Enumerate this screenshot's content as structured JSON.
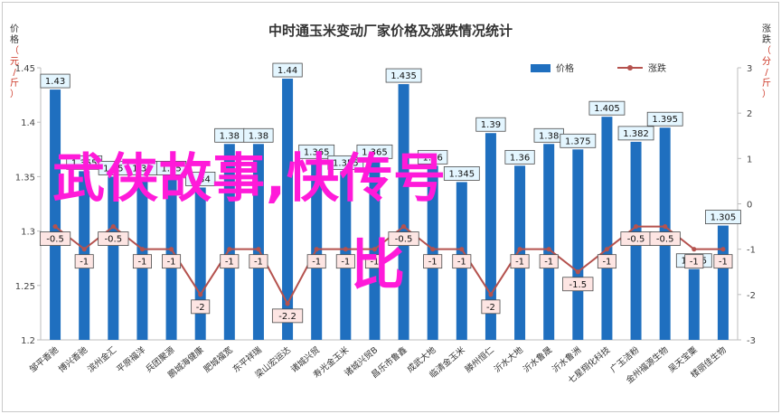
{
  "chart_data": {
    "type": "bar",
    "title": "中时通玉米变动厂家价格及涨跌情况统计",
    "ylabel_left": "价格（元/斤）",
    "ylabel_right": "涨跌（分/斤）",
    "xlabel": "",
    "ylim_left": [
      1.2,
      1.45
    ],
    "yticks_left": [
      "1.2",
      "1.25",
      "1.3",
      "1.35",
      "1.4",
      "1.45"
    ],
    "ylim_right": [
      -3,
      3
    ],
    "yticks_right": [
      "-3",
      "-2",
      "-1",
      "0",
      "1",
      "2",
      "3"
    ],
    "legend_position": "top-right",
    "grid": false,
    "categories": [
      "邹平香驰",
      "博兴香驰",
      "滨州金汇",
      "平原福洋",
      "兵团聚源",
      "鹏城海健康",
      "肥城福宽",
      "东平祥瑞",
      "梁山宏运达",
      "诸城兴贸",
      "寿光金玉米",
      "诸城兴贸B",
      "昌乐市鲁鑫",
      "成武大地",
      "临清金玉米",
      "滕州恒仁",
      "沂水大地",
      "沂水鲁晟",
      "沂水鲁洲",
      "七星翔化科技",
      "广玉洁粉",
      "金州福源生物",
      "吴天宝粟",
      "楼丽佳生物"
    ],
    "series": [
      {
        "name": "价格",
        "type": "bar",
        "color": "#1f6fbf",
        "values": [
          1.43,
          1.355,
          1.35,
          1.35,
          1.35,
          1.34,
          1.38,
          1.38,
          1.44,
          1.365,
          1.355,
          1.365,
          1.435,
          1.36,
          1.345,
          1.39,
          1.36,
          1.38,
          1.375,
          1.405,
          1.382,
          1.395,
          1.265,
          1.305
        ],
        "labels": [
          "1.43",
          "1.355",
          "1.35",
          "1.35",
          "1.35",
          "1.34",
          "1.38",
          "1.38",
          "1.44",
          "1.365",
          "1.355",
          "1.365",
          "1.435",
          "1.36",
          "1.345",
          "1.39",
          "1.36",
          "1.38",
          "1.375",
          "1.405",
          "1.382",
          "1.395",
          "1.265",
          "1.305"
        ]
      },
      {
        "name": "涨跌",
        "type": "line",
        "color": "#b5524e",
        "values": [
          -0.5,
          -1,
          -0.5,
          -1,
          -1,
          -2,
          -1,
          -1,
          -2.2,
          -1,
          -1,
          -1,
          -0.5,
          -1,
          -1,
          -2,
          -1,
          -1,
          -1.5,
          -1,
          -0.5,
          -0.5,
          -1,
          -1
        ],
        "labels": [
          "-0.5",
          "-1",
          "-0.5",
          "-1",
          "-1",
          "-2",
          "-1",
          "-1",
          "-2.2",
          "-1",
          "-1",
          "-1",
          "-0.5",
          "-1",
          "-1",
          "-2",
          "-1",
          "-1",
          "-1.5",
          "-1",
          "-0.5",
          "-0.5",
          "-1",
          "-1"
        ]
      }
    ]
  },
  "overlay": {
    "line1": "武侠故事,快传号",
    "line2": "比"
  }
}
